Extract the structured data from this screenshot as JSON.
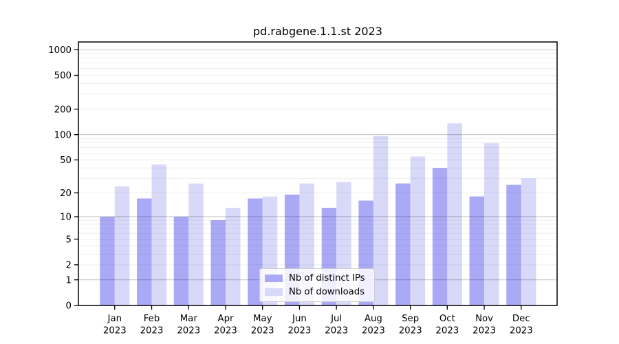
{
  "chart_data": {
    "type": "bar",
    "title": "pd.rabgene.1.1.st 2023",
    "categories": [
      "Jan 2023",
      "Feb 2023",
      "Mar 2023",
      "Apr 2023",
      "May 2023",
      "Jun 2023",
      "Jul 2023",
      "Aug 2023",
      "Sep 2023",
      "Oct 2023",
      "Nov 2023",
      "Dec 2023"
    ],
    "series": [
      {
        "name": "Nb of distinct IPs",
        "color": "#a9a9f6",
        "values": [
          10,
          17,
          10,
          9,
          17,
          19,
          13,
          16,
          26,
          40,
          18,
          25
        ]
      },
      {
        "name": "Nb of downloads",
        "color": "#d8d8f9",
        "values": [
          24,
          44,
          26,
          13,
          18,
          26,
          27,
          96,
          55,
          136,
          79,
          30
        ]
      }
    ],
    "yticks": [
      0,
      1,
      2,
      5,
      10,
      20,
      50,
      100,
      200,
      500,
      1000
    ],
    "ylim": [
      0,
      1000
    ],
    "yscale": "log1p",
    "xlabel": "",
    "ylabel": "",
    "grid": true,
    "legend_position": "lower center",
    "colors": {
      "ips_bar": "#a9a9f6",
      "downloads_bar": "#d8d8f9",
      "major_gridline": "#c8c8c8",
      "minor_gridline": "#ededed",
      "axis": "#000000",
      "background": "#ffffff"
    }
  }
}
